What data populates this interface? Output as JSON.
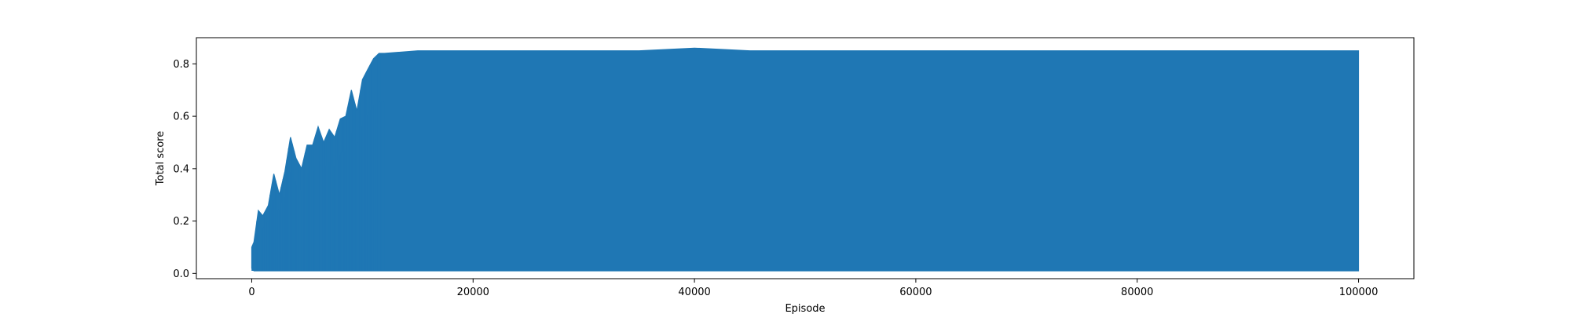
{
  "chart_data": {
    "type": "line",
    "title": "",
    "xlabel": "Episode",
    "ylabel": "Total score",
    "xlim": [
      -5000,
      105000
    ],
    "ylim": [
      -0.02,
      0.9
    ],
    "xticks": [
      0,
      20000,
      40000,
      60000,
      80000,
      100000
    ],
    "xtick_labels": [
      "0",
      "20000",
      "40000",
      "60000",
      "80000",
      "100000"
    ],
    "yticks": [
      0.0,
      0.2,
      0.4,
      0.6,
      0.8
    ],
    "ytick_labels": [
      "0.0",
      "0.2",
      "0.4",
      "0.6",
      "0.8"
    ],
    "grid": false,
    "legend": "none",
    "series": [
      {
        "color": "#1f77b4",
        "x": [
          0,
          200,
          600,
          1000,
          1500,
          2000,
          2500,
          3000,
          3500,
          4000,
          4500,
          5000,
          5500,
          6000,
          6500,
          7000,
          7500,
          8000,
          8500,
          9000,
          9500,
          10000,
          10500,
          11000,
          11500,
          12000,
          15000,
          20000,
          25000,
          30000,
          35000,
          40000,
          45000,
          50000,
          55000,
          60000,
          65000,
          70000,
          75000,
          80000,
          85000,
          90000,
          95000,
          100000
        ],
        "upper": [
          0.1,
          0.12,
          0.24,
          0.22,
          0.26,
          0.38,
          0.3,
          0.39,
          0.52,
          0.44,
          0.4,
          0.49,
          0.49,
          0.56,
          0.5,
          0.55,
          0.52,
          0.59,
          0.6,
          0.7,
          0.62,
          0.74,
          0.78,
          0.82,
          0.84,
          0.84,
          0.85,
          0.85,
          0.85,
          0.85,
          0.85,
          0.86,
          0.85,
          0.85,
          0.85,
          0.85,
          0.85,
          0.85,
          0.85,
          0.85,
          0.85,
          0.85,
          0.85,
          0.85
        ],
        "lower": [
          0.02,
          0.01,
          0.01,
          0.01,
          0.01,
          0.01,
          0.01,
          0.01,
          0.01,
          0.01,
          0.01,
          0.01,
          0.01,
          0.01,
          0.01,
          0.01,
          0.01,
          0.01,
          0.01,
          0.01,
          0.01,
          0.01,
          0.01,
          0.01,
          0.01,
          0.01,
          0.01,
          0.01,
          0.01,
          0.01,
          0.01,
          0.01,
          0.01,
          0.01,
          0.01,
          0.01,
          0.01,
          0.01,
          0.01,
          0.01,
          0.01,
          0.01,
          0.01,
          0.01
        ]
      }
    ]
  }
}
